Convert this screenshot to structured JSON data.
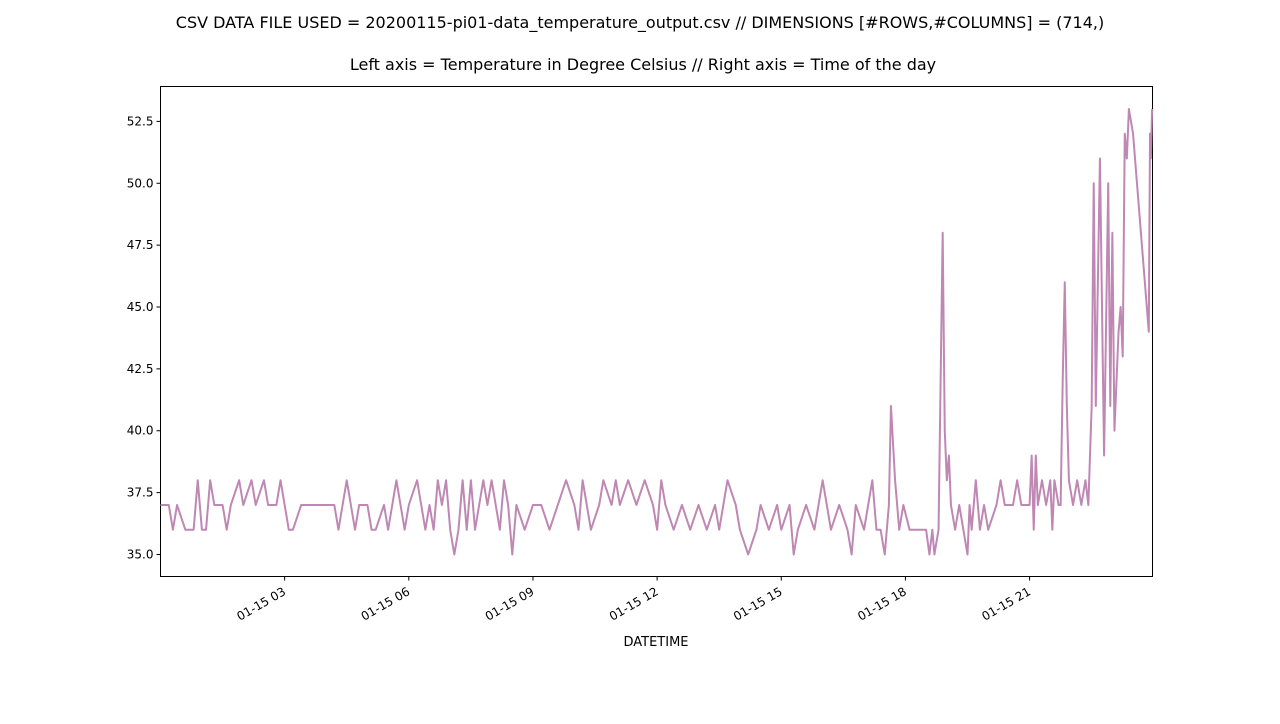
{
  "chart_data": {
    "type": "line",
    "suptitle": "CSV DATA FILE USED = 20200115-pi01-data_temperature_output.csv // DIMENSIONS [#ROWS,#COLUMNS] = (714,)",
    "title": "Left axis = Temperature in Degree Celsius // Right axis = Time of the day",
    "xlabel": "DATETIME",
    "color": "#bf87b3",
    "xlim": [
      0,
      23.97
    ],
    "xticks": [
      {
        "value": 3,
        "label": "01-15 03"
      },
      {
        "value": 6,
        "label": "01-15 06"
      },
      {
        "value": 9,
        "label": "01-15 09"
      },
      {
        "value": 12,
        "label": "01-15 12"
      },
      {
        "value": 15,
        "label": "01-15 15"
      },
      {
        "value": 18,
        "label": "01-15 18"
      },
      {
        "value": 21,
        "label": "01-15 21"
      }
    ],
    "ylim": [
      34.11,
      53.91
    ],
    "yticks": [
      {
        "value": 35,
        "label": "35.0"
      },
      37.5,
      {
        "value": 40,
        "label": "40.0"
      },
      42.5,
      {
        "value": 45,
        "label": "45.0"
      },
      47.5,
      {
        "value": 50,
        "label": "50.0"
      },
      52.5
    ],
    "x": [
      0.0,
      0.2,
      0.3,
      0.4,
      0.6,
      0.8,
      0.9,
      1.0,
      1.1,
      1.2,
      1.3,
      1.5,
      1.6,
      1.7,
      1.9,
      2.0,
      2.2,
      2.3,
      2.5,
      2.6,
      2.8,
      2.9,
      3.0,
      3.1,
      3.2,
      3.4,
      3.6,
      3.8,
      4.0,
      4.2,
      4.3,
      4.4,
      4.5,
      4.6,
      4.7,
      4.8,
      5.0,
      5.1,
      5.2,
      5.4,
      5.5,
      5.6,
      5.7,
      5.8,
      5.9,
      6.0,
      6.2,
      6.3,
      6.4,
      6.5,
      6.6,
      6.7,
      6.8,
      6.9,
      7.0,
      7.1,
      7.2,
      7.3,
      7.4,
      7.5,
      7.6,
      7.8,
      7.9,
      8.0,
      8.1,
      8.2,
      8.3,
      8.4,
      8.5,
      8.6,
      8.8,
      9.0,
      9.2,
      9.4,
      9.6,
      9.8,
      10.0,
      10.1,
      10.2,
      10.3,
      10.4,
      10.6,
      10.7,
      10.9,
      11.0,
      11.1,
      11.3,
      11.5,
      11.7,
      11.9,
      12.0,
      12.1,
      12.2,
      12.4,
      12.6,
      12.8,
      13.0,
      13.2,
      13.4,
      13.5,
      13.7,
      13.9,
      14.0,
      14.2,
      14.4,
      14.5,
      14.7,
      14.9,
      15.0,
      15.2,
      15.3,
      15.4,
      15.6,
      15.8,
      16.0,
      16.2,
      16.4,
      16.6,
      16.7,
      16.8,
      17.0,
      17.2,
      17.3,
      17.4,
      17.5,
      17.6,
      17.65,
      17.75,
      17.85,
      17.95,
      18.1,
      18.3,
      18.5,
      18.58,
      18.65,
      18.7,
      18.8,
      18.9,
      18.95,
      19.0,
      19.05,
      19.1,
      19.2,
      19.3,
      19.4,
      19.5,
      19.55,
      19.6,
      19.7,
      19.8,
      19.9,
      20.0,
      20.2,
      20.3,
      20.4,
      20.6,
      20.7,
      20.8,
      21.0,
      21.05,
      21.1,
      21.15,
      21.2,
      21.3,
      21.4,
      21.5,
      21.55,
      21.6,
      21.7,
      21.75,
      21.8,
      21.85,
      21.9,
      21.95,
      22.05,
      22.15,
      22.25,
      22.35,
      22.42,
      22.5,
      22.55,
      22.6,
      22.7,
      22.8,
      22.9,
      22.95,
      23.0,
      23.05,
      23.15,
      23.2,
      23.25,
      23.3,
      23.35,
      23.4,
      23.5,
      23.88,
      23.91,
      23.93,
      23.96
    ],
    "values": [
      37,
      37,
      36,
      37,
      36,
      36,
      38,
      36,
      36,
      38,
      37,
      37,
      36,
      37,
      38,
      37,
      38,
      37,
      38,
      37,
      37,
      38,
      37,
      36,
      36,
      37,
      37,
      37,
      37,
      37,
      36,
      37,
      38,
      37,
      36,
      37,
      37,
      36,
      36,
      37,
      36,
      37,
      38,
      37,
      36,
      37,
      38,
      37,
      36,
      37,
      36,
      38,
      37,
      38,
      36,
      35,
      36,
      38,
      36,
      38,
      36,
      38,
      37,
      38,
      37,
      36,
      38,
      37,
      35,
      37,
      36,
      37,
      37,
      36,
      37,
      38,
      37,
      36,
      38,
      37,
      36,
      37,
      38,
      37,
      38,
      37,
      38,
      37,
      38,
      37,
      36,
      38,
      37,
      36,
      37,
      36,
      37,
      36,
      37,
      36,
      38,
      37,
      36,
      35,
      36,
      37,
      36,
      37,
      36,
      37,
      35,
      36,
      37,
      36,
      38,
      36,
      37,
      36,
      35,
      37,
      36,
      38,
      36,
      36,
      35,
      37,
      41,
      38,
      36,
      37,
      36,
      36,
      36,
      35,
      36,
      35,
      36,
      48,
      40,
      38,
      39,
      37,
      36,
      37,
      36,
      35,
      37,
      36,
      38,
      36,
      37,
      36,
      37,
      38,
      37,
      37,
      38,
      37,
      37,
      39,
      36,
      39,
      37,
      38,
      37,
      38,
      36,
      38,
      37,
      37,
      42,
      46,
      41,
      38,
      37,
      38,
      37,
      38,
      37,
      41,
      50,
      41,
      51,
      39,
      50,
      41,
      48,
      40,
      44,
      45,
      43,
      52,
      51,
      53,
      52,
      44,
      52,
      51,
      53
    ]
  }
}
